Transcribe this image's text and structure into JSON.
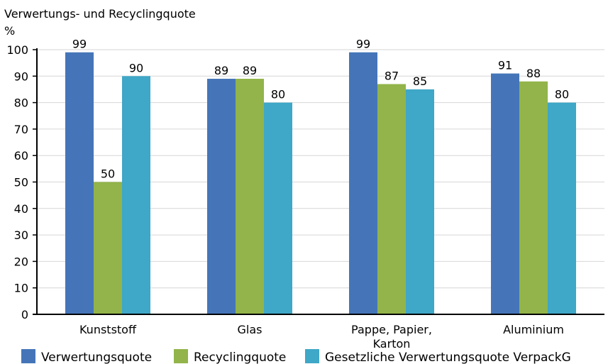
{
  "chart_data": {
    "type": "bar",
    "title": "Verwertungs- und Recyclingquote",
    "ylabel": "%",
    "ylim": [
      0,
      100
    ],
    "yticks": [
      0,
      10,
      20,
      30,
      40,
      50,
      60,
      70,
      80,
      90,
      100
    ],
    "grid": true,
    "legend_position": "bottom",
    "categories": [
      [
        "Kunststoff"
      ],
      [
        "Glas"
      ],
      [
        "Pappe, Papier,",
        "Karton"
      ],
      [
        "Aluminium"
      ]
    ],
    "series": [
      {
        "name": "Verwertungsquote",
        "color": "#4575b8",
        "values": [
          99,
          89,
          99,
          91
        ]
      },
      {
        "name": "Recyclingquote",
        "color": "#92b44a",
        "values": [
          50,
          89,
          87,
          88
        ]
      },
      {
        "name": "Gesetzliche Verwertungsquote VerpackG",
        "color": "#3fa7c7",
        "values": [
          90,
          80,
          85,
          80
        ]
      }
    ]
  }
}
